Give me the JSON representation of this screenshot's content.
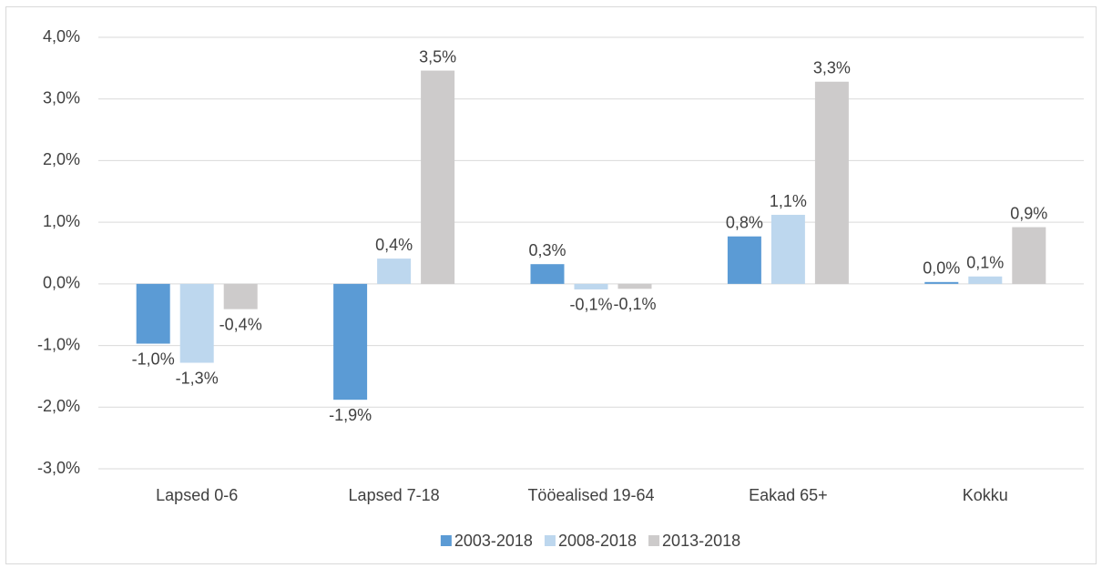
{
  "chart_data": {
    "type": "bar",
    "categories": [
      "Lapsed 0-6",
      "Lapsed 7-18",
      "Tööealised 19-64",
      "Eakad 65+",
      "Kokku"
    ],
    "series": [
      {
        "name": "2003-2018",
        "color": "#5b9bd5",
        "values": [
          -0.97,
          -1.88,
          0.32,
          0.77,
          0.03
        ],
        "value_labels": [
          "-1,0%",
          "-1,9%",
          "0,3%",
          "0,8%",
          "0,0%"
        ]
      },
      {
        "name": "2008-2018",
        "color": "#bdd7ee",
        "values": [
          -1.28,
          0.41,
          -0.09,
          1.12,
          0.12
        ],
        "value_labels": [
          "-1,3%",
          "0,4%",
          "-0,1%",
          "1,1%",
          "0,1%"
        ]
      },
      {
        "name": "2013-2018",
        "color": "#cdcbcb",
        "values": [
          -0.41,
          3.46,
          -0.08,
          3.28,
          0.92
        ],
        "value_labels": [
          "-0,4%",
          "3,5%",
          "-0,1%",
          "3,3%",
          "0,9%"
        ]
      }
    ],
    "ylim": [
      -3,
      4
    ],
    "yticks": [
      {
        "value": -3,
        "label": "-3,0%"
      },
      {
        "value": -2,
        "label": "-2,0%"
      },
      {
        "value": -1,
        "label": "-1,0%"
      },
      {
        "value": 0,
        "label": "0,0%"
      },
      {
        "value": 1,
        "label": "1,0%"
      },
      {
        "value": 2,
        "label": "2,0%"
      },
      {
        "value": 3,
        "label": "3,0%"
      },
      {
        "value": 4,
        "label": "4,0%"
      }
    ],
    "grid": true,
    "legend": "bottom"
  }
}
